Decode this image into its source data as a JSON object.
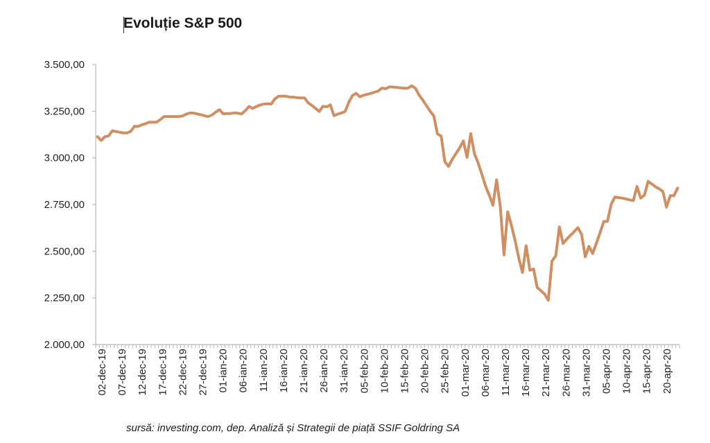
{
  "chart_data": {
    "type": "line",
    "title": "Evoluție S&P 500",
    "source": "sursă: investing.com, dep. Analiză și Strategii de piață SSIF Goldring SA",
    "ylim": [
      2000,
      3500
    ],
    "yticks": [
      2000,
      2250,
      2500,
      2750,
      3000,
      3250,
      3500
    ],
    "ytick_labels": [
      "2.000,00",
      "2.250,00",
      "2.500,00",
      "2.750,00",
      "3.000,00",
      "3.250,00",
      "3.500,00"
    ],
    "xtick_labels": [
      "02-dec-19",
      "07-dec-19",
      "12-dec-19",
      "17-dec-19",
      "22-dec-19",
      "27-dec-19",
      "01-ian-20",
      "06-ian-20",
      "11-ian-20",
      "16-ian-20",
      "21-ian-20",
      "26-ian-20",
      "31-ian-20",
      "05-feb-20",
      "10-feb-20",
      "15-feb-20",
      "20-feb-20",
      "25-feb-20",
      "01-mar-20",
      "06-mar-20",
      "11-mar-20",
      "16-mar-20",
      "21-mar-20",
      "26-mar-20",
      "31-mar-20",
      "05-apr-20",
      "10-apr-20",
      "15-apr-20",
      "20-apr-20"
    ],
    "line_color": "#d08f63",
    "grid": false,
    "series": [
      {
        "values": [
          3113,
          3093,
          3113,
          3118,
          3145,
          3141,
          3137,
          3133,
          3133,
          3142,
          3169,
          3168,
          3177,
          3183,
          3191,
          3191,
          3191,
          3205,
          3221,
          3221,
          3221,
          3221,
          3221,
          3224,
          3234,
          3240,
          3240,
          3235,
          3231,
          3225,
          3221,
          3230,
          3245,
          3258,
          3236,
          3237,
          3237,
          3241,
          3239,
          3235,
          3253,
          3275,
          3265,
          3275,
          3283,
          3288,
          3289,
          3288,
          3316,
          3330,
          3330,
          3330,
          3325,
          3325,
          3322,
          3321,
          3321,
          3295,
          3281,
          3265,
          3248,
          3276,
          3273,
          3284,
          3226,
          3234,
          3240,
          3248,
          3297,
          3334,
          3345,
          3327,
          3335,
          3340,
          3345,
          3352,
          3358,
          3374,
          3370,
          3380,
          3379,
          3377,
          3375,
          3373,
          3373,
          3386,
          3373,
          3337,
          3310,
          3280,
          3250,
          3225,
          3128,
          3116,
          2979,
          2954,
          2992,
          3023,
          3053,
          3091,
          3003,
          3130,
          3023,
          2972,
          2913,
          2850,
          2800,
          2746,
          2882,
          2741,
          2480,
          2711,
          2640,
          2557,
          2464,
          2386,
          2529,
          2398,
          2405,
          2305,
          2288,
          2270,
          2237,
          2447,
          2475,
          2630,
          2541,
          2565,
          2585,
          2605,
          2626,
          2590,
          2470,
          2526,
          2488,
          2542,
          2599,
          2659,
          2660,
          2750,
          2790,
          2787,
          2784,
          2780,
          2775,
          2771,
          2846,
          2784,
          2800,
          2874,
          2860,
          2845,
          2834,
          2820,
          2736,
          2797,
          2797,
          2838
        ]
      }
    ]
  }
}
